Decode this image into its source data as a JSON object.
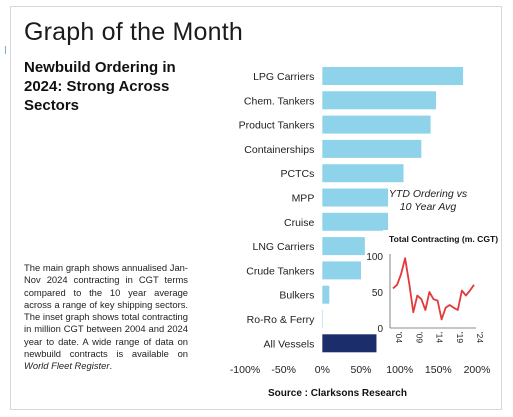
{
  "header": {
    "title": "Graph of the Month",
    "subtitle": "Newbuild Ordering in 2024: Strong Across Sectors"
  },
  "description": {
    "text": "The main graph shows annualised Jan-Nov 2024 contracting in CGT terms compared to the 10 year average across a range of key shipping sectors. The inset graph shows total contracting in million CGT between 2004 and 2024 year to date. A wide range of data on newbuild contracts is available on ",
    "link_text": "World Fleet Register",
    "end": "."
  },
  "source": "Source : Clarksons Research",
  "colors": {
    "bar": "#8fd3ea",
    "highlight_bar": "#1c2d6b",
    "inset_line": "#e23a3a"
  },
  "chart_data": [
    {
      "type": "bar",
      "orientation": "horizontal",
      "categories": [
        "LPG Carriers",
        "Chem. Tankers",
        "Product Tankers",
        "Containerships",
        "PCTCs",
        "MPP",
        "Cruise",
        "LNG Carriers",
        "Crude Tankers",
        "Bulkers",
        "Ro-Ro & Ferry",
        "All Vessels"
      ],
      "values": [
        182,
        147,
        140,
        128,
        105,
        85,
        85,
        55,
        50,
        9,
        0,
        70
      ],
      "highlight_index": 11,
      "xlim": [
        -100,
        200
      ],
      "xticks": [
        "-100%",
        "-50%",
        "0%",
        "50%",
        "100%",
        "150%",
        "200%"
      ],
      "annotation": "YTD Ordering vs 10 Year Avg",
      "grid": false
    },
    {
      "type": "line",
      "title": "Total Contracting (m. CGT)",
      "x": [
        2004,
        2005,
        2006,
        2007,
        2008,
        2009,
        2010,
        2011,
        2012,
        2013,
        2014,
        2015,
        2016,
        2017,
        2018,
        2019,
        2020,
        2021,
        2022,
        2023,
        2024
      ],
      "y": [
        55,
        60,
        75,
        97,
        62,
        22,
        45,
        40,
        25,
        50,
        40,
        38,
        12,
        28,
        32,
        28,
        25,
        52,
        45,
        52,
        60
      ],
      "ylim": [
        0,
        100
      ],
      "yticks": [
        "0",
        "50",
        "100"
      ],
      "xticks": [
        "'04",
        "'09",
        "'14",
        "'19",
        "'24"
      ]
    }
  ]
}
